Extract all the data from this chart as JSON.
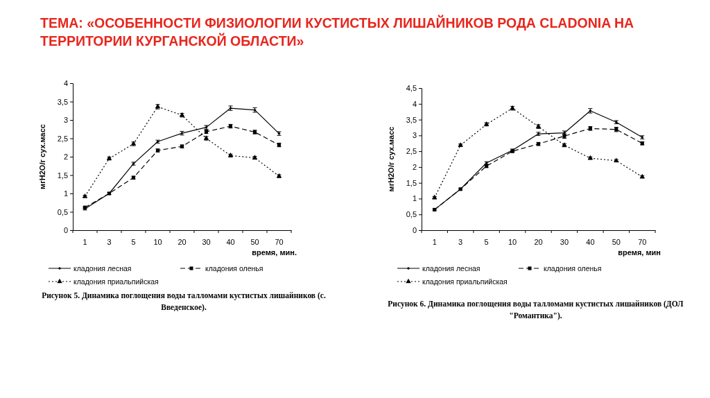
{
  "chart_data": [
    {
      "type": "line",
      "title": "ТЕМА: «ОСОБЕННОСТИ ФИЗИОЛОГИИ КУСТИСТЫХ ЛИШАЙНИКОВ РОДА CLADONIA НА ТЕРРИТОРИИ КУРГАНСКОЙ ОБЛАСТИ»",
      "xlabel": "время, мин.",
      "ylabel": "мгH2O/г сух.масс",
      "categories": [
        "1",
        "3",
        "5",
        "10",
        "20",
        "30",
        "40",
        "50",
        "70"
      ],
      "ylim": [
        0,
        4
      ],
      "yticks": [
        0,
        {
          "value": 0.5,
          "label": "0,5"
        },
        1,
        {
          "value": 1.5,
          "label": "1,5"
        },
        2,
        {
          "value": 2.5,
          "label": "2,5"
        },
        3,
        {
          "value": 3.5,
          "label": "3,5"
        },
        4
      ],
      "legend": "bottom",
      "grid": false,
      "series": [
        {
          "name": "кладония лесная",
          "color": "#000000",
          "marker": "diamond",
          "line_style": "solid",
          "values": [
            0.58,
            1.0,
            1.81,
            2.41,
            2.64,
            2.8,
            3.32,
            3.27,
            2.63
          ],
          "errors": [
            0.03,
            null,
            0.04,
            0.04,
            0.05,
            0.05,
            0.06,
            0.06,
            0.05
          ]
        },
        {
          "name": "кладония оленья",
          "color": "#000000",
          "marker": "square",
          "line_style": "dashed",
          "values": [
            0.62,
            1.0,
            1.43,
            2.17,
            2.28,
            2.68,
            2.83,
            2.67,
            2.32
          ],
          "errors": [
            0.03,
            0.03,
            0.04,
            0.04,
            0.04,
            0.05,
            0.05,
            0.05,
            0.05
          ]
        },
        {
          "name": "кладония приальпийская",
          "color": "#000000",
          "marker": "triangle",
          "line_style": "dotted",
          "values": [
            0.92,
            1.95,
            2.35,
            3.36,
            3.13,
            2.5,
            2.03,
            1.97,
            1.47
          ],
          "errors": [
            0.03,
            0.04,
            0.05,
            0.06,
            0.05,
            0.05,
            0.04,
            0.04,
            0.04
          ]
        }
      ],
      "annotations": [
        "Рисунок 5. Динамика поглощения воды талломами кустистых лишайников (с. Введенское)."
      ]
    },
    {
      "type": "line",
      "xlabel": "время, мин",
      "ylabel": "мгH2O/г сух.масс",
      "categories": [
        "1",
        "3",
        "5",
        "10",
        "20",
        "30",
        "40",
        "50",
        "70"
      ],
      "ylim": [
        0,
        4.5
      ],
      "yticks": [
        0,
        {
          "value": 0.5,
          "label": "0,5"
        },
        1,
        {
          "value": 1.5,
          "label": "1,5"
        },
        2,
        {
          "value": 2.5,
          "label": "2,5"
        },
        3,
        {
          "value": 3.5,
          "label": "3,5"
        },
        4,
        {
          "value": 4.5,
          "label": "4,5"
        }
      ],
      "legend": "bottom",
      "grid": false,
      "series": [
        {
          "name": "кладония лесная",
          "color": "#000000",
          "marker": "diamond",
          "line_style": "solid",
          "values": [
            0.65,
            1.3,
            2.13,
            2.53,
            3.05,
            3.08,
            3.78,
            3.42,
            2.94
          ],
          "errors": [
            null,
            null,
            0.04,
            0.04,
            0.05,
            0.06,
            0.07,
            0.05,
            0.05
          ]
        },
        {
          "name": "кладония оленья",
          "color": "#000000",
          "marker": "square",
          "line_style": "dashed",
          "values": [
            0.65,
            1.3,
            2.03,
            2.5,
            2.73,
            2.98,
            3.22,
            3.19,
            2.75
          ],
          "errors": [
            0.03,
            0.03,
            0.05,
            0.04,
            0.05,
            0.07,
            0.06,
            0.07,
            0.05
          ]
        },
        {
          "name": "кладония приальпийская",
          "color": "#000000",
          "marker": "triangle",
          "line_style": "dotted",
          "values": [
            1.03,
            2.69,
            3.35,
            3.86,
            3.28,
            2.69,
            2.28,
            2.2,
            1.69
          ],
          "errors": [
            0.04,
            0.04,
            0.05,
            0.06,
            0.06,
            0.05,
            0.04,
            0.04,
            0.04
          ]
        }
      ],
      "annotations": [
        "Рисунок 6. Динамика поглощения воды талломами кустистых лишайников (ДОЛ \"Романтика\")."
      ]
    }
  ]
}
